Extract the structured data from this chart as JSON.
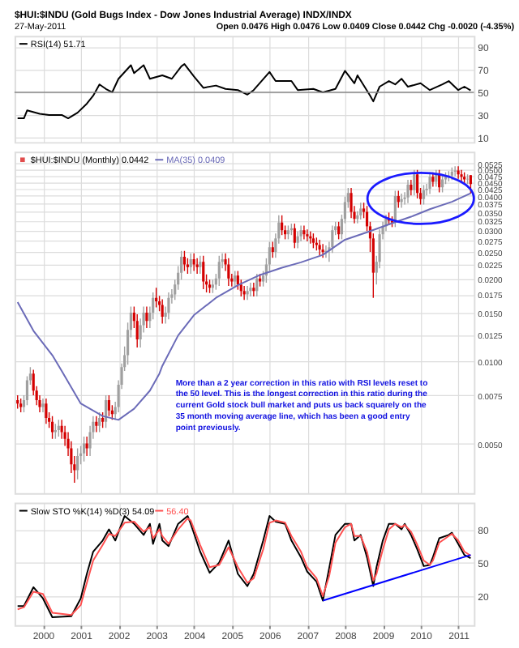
{
  "chart_data": [
    {
      "type": "line",
      "title": "$HUI:$INDU (Gold Bugs Index - Dow Jones Industrial Average) INDX/INDX",
      "subtitle": "27-May-2011",
      "annotations": [
        "Open 0.0476 High 0.0476 Low 0.0409 Close 0.0442 Chg -0.0020 (-4.35%)"
      ],
      "xlim": [
        "1999-04",
        "2011-06"
      ],
      "xticks": [
        "2000",
        "2001",
        "2002",
        "2003",
        "2004",
        "2005",
        "2006",
        "2007",
        "2008",
        "2009",
        "2010",
        "2011"
      ],
      "ylim": [
        6,
        100
      ],
      "yticks": [
        10,
        30,
        50,
        70,
        90
      ],
      "grid": true,
      "tick_labels": "y",
      "legend": "top left",
      "ref_lines": [
        {
          "axis": "y",
          "value": 50,
          "color": "#888888"
        }
      ],
      "series": [
        {
          "name": "RSI(14) 51.71",
          "color": "#000000",
          "x": [
            "1999-05",
            "1999-07",
            "1999-08",
            "1999-12",
            "2000-03",
            "2000-07",
            "2000-09",
            "2000-12",
            "2001-03",
            "2001-05",
            "2001-07",
            "2001-09",
            "2001-11",
            "2002-01",
            "2002-05",
            "2002-06",
            "2002-09",
            "2002-11",
            "2003-03",
            "2003-06",
            "2003-09",
            "2003-10",
            "2004-01",
            "2004-04",
            "2004-08",
            "2004-11",
            "2005-03",
            "2005-06",
            "2005-08",
            "2006-01",
            "2006-03",
            "2006-08",
            "2006-10",
            "2007-03",
            "2007-06",
            "2007-10",
            "2008-01",
            "2008-04",
            "2008-05",
            "2008-09",
            "2008-10",
            "2008-12",
            "2009-03",
            "2009-05",
            "2009-07",
            "2009-09",
            "2010-01",
            "2010-04",
            "2010-08",
            "2010-10",
            "2011-01",
            "2011-03",
            "2011-05"
          ],
          "values": [
            27,
            27,
            34,
            31,
            30,
            30,
            27,
            32,
            40,
            47,
            57,
            53,
            50,
            62,
            74,
            67,
            74,
            62,
            65,
            62,
            73,
            75,
            64,
            54,
            56,
            53,
            52,
            48,
            52,
            68,
            60,
            60,
            52,
            53,
            50,
            53,
            69,
            58,
            65,
            47,
            42,
            55,
            60,
            57,
            62,
            55,
            58,
            52,
            57,
            60,
            52,
            55,
            51.71
          ]
        }
      ]
    },
    {
      "type": "candlestick",
      "xlim": [
        "1999-04",
        "2011-06"
      ],
      "xticks": [
        "2000",
        "2001",
        "2002",
        "2003",
        "2004",
        "2005",
        "2006",
        "2007",
        "2008",
        "2009",
        "2010",
        "2011"
      ],
      "ylim": [
        0.0033,
        0.058
      ],
      "log": true,
      "grid": true,
      "tick_labels": "y",
      "legend": "top left",
      "yticks": [
        {
          "value": 0.005,
          "label": "0.0050"
        },
        {
          "value": 0.0075,
          "label": "0.0075"
        },
        {
          "value": 0.01,
          "label": "0.0100"
        },
        {
          "value": 0.0125,
          "label": "0.0125"
        },
        {
          "value": 0.015,
          "label": "0.0150"
        },
        {
          "value": 0.0175,
          "label": "0.0175"
        },
        {
          "value": 0.02,
          "label": "0.0200"
        },
        {
          "value": 0.0225,
          "label": "0.0225"
        },
        {
          "value": 0.025,
          "label": "0.0250"
        },
        {
          "value": 0.0275,
          "label": "0.0275"
        },
        {
          "value": 0.03,
          "label": "0.0300"
        },
        {
          "value": 0.0325,
          "label": "0.0325"
        },
        {
          "value": 0.035,
          "label": "0.0350"
        },
        {
          "value": 0.0375,
          "label": "0.0375"
        },
        {
          "value": 0.04,
          "label": "0.0400"
        },
        {
          "value": 0.0425,
          "label": "0.0425"
        },
        {
          "value": 0.045,
          "label": "0.0450"
        },
        {
          "value": 0.0475,
          "label": "0.0475"
        },
        {
          "value": 0.05,
          "label": "0.0500"
        },
        {
          "value": 0.0525,
          "label": "0.0525"
        }
      ],
      "annotations": [
        "More than a 2 year correction in this ratio with RSI levels reset to\nthe 50 level. This is the longest correction in this ratio during the\ncurrent Gold stock bull market and puts us back squarely on the\n35 month moving average line, which has been a good entry\npoint previously."
      ],
      "series": [
        {
          "type": "candlestick",
          "name": "$HUI:$INDU (Monthly) 0.0442",
          "color": "#000000",
          "x": [
            "1999-05",
            "1999-06",
            "1999-07",
            "1999-08",
            "1999-09",
            "1999-10",
            "1999-11",
            "1999-12",
            "2000-01",
            "2000-02",
            "2000-03",
            "2000-04",
            "2000-05",
            "2000-06",
            "2000-07",
            "2000-08",
            "2000-09",
            "2000-10",
            "2000-11",
            "2000-12",
            "2001-01",
            "2001-02",
            "2001-03",
            "2001-04",
            "2001-05",
            "2001-06",
            "2001-07",
            "2001-08",
            "2001-09",
            "2001-10",
            "2001-11",
            "2001-12",
            "2002-01",
            "2002-02",
            "2002-03",
            "2002-04",
            "2002-05",
            "2002-06",
            "2002-07",
            "2002-08",
            "2002-09",
            "2002-10",
            "2002-11",
            "2002-12",
            "2003-01",
            "2003-02",
            "2003-03",
            "2003-04",
            "2003-05",
            "2003-06",
            "2003-07",
            "2003-08",
            "2003-09",
            "2003-10",
            "2003-11",
            "2003-12",
            "2004-01",
            "2004-02",
            "2004-03",
            "2004-04",
            "2004-05",
            "2004-06",
            "2004-07",
            "2004-08",
            "2004-09",
            "2004-10",
            "2004-11",
            "2004-12",
            "2005-01",
            "2005-02",
            "2005-03",
            "2005-04",
            "2005-05",
            "2005-06",
            "2005-07",
            "2005-08",
            "2005-09",
            "2005-10",
            "2005-11",
            "2005-12",
            "2006-01",
            "2006-02",
            "2006-03",
            "2006-04",
            "2006-05",
            "2006-06",
            "2006-07",
            "2006-08",
            "2006-09",
            "2006-10",
            "2006-11",
            "2006-12",
            "2007-01",
            "2007-02",
            "2007-03",
            "2007-04",
            "2007-05",
            "2007-06",
            "2007-07",
            "2007-08",
            "2007-09",
            "2007-10",
            "2007-11",
            "2007-12",
            "2008-01",
            "2008-02",
            "2008-03",
            "2008-04",
            "2008-05",
            "2008-06",
            "2008-07",
            "2008-08",
            "2008-09",
            "2008-10",
            "2008-11",
            "2008-12",
            "2009-01",
            "2009-02",
            "2009-03",
            "2009-04",
            "2009-05",
            "2009-06",
            "2009-07",
            "2009-08",
            "2009-09",
            "2009-10",
            "2009-11",
            "2009-12",
            "2010-01",
            "2010-02",
            "2010-03",
            "2010-04",
            "2010-05",
            "2010-06",
            "2010-07",
            "2010-08",
            "2010-09",
            "2010-10",
            "2010-11",
            "2010-12",
            "2011-01",
            "2011-02",
            "2011-03",
            "2011-04",
            "2011-05"
          ],
          "ohlc": [
            [
              0.0072,
              0.0075,
              0.0067,
              0.007
            ],
            [
              0.007,
              0.0073,
              0.0065,
              0.0068
            ],
            [
              0.0068,
              0.0075,
              0.0065,
              0.0072
            ],
            [
              0.0072,
              0.0088,
              0.0069,
              0.0085
            ],
            [
              0.0085,
              0.0095,
              0.0082,
              0.009
            ],
            [
              0.009,
              0.0093,
              0.0075,
              0.0078
            ],
            [
              0.0078,
              0.0081,
              0.0069,
              0.0072
            ],
            [
              0.0072,
              0.0075,
              0.0065,
              0.0068
            ],
            [
              0.0068,
              0.0073,
              0.0065,
              0.007
            ],
            [
              0.007,
              0.0073,
              0.0059,
              0.0062
            ],
            [
              0.0062,
              0.0065,
              0.0057,
              0.006
            ],
            [
              0.006,
              0.0063,
              0.0052,
              0.0055
            ],
            [
              0.0055,
              0.0059,
              0.0052,
              0.0056
            ],
            [
              0.0056,
              0.0061,
              0.0053,
              0.0058
            ],
            [
              0.0058,
              0.0061,
              0.0052,
              0.0055
            ],
            [
              0.0055,
              0.0058,
              0.0049,
              0.0052
            ],
            [
              0.0052,
              0.0055,
              0.0045,
              0.0048
            ],
            [
              0.0048,
              0.0051,
              0.0039,
              0.0042
            ],
            [
              0.0042,
              0.0045,
              0.0036,
              0.004
            ],
            [
              0.004,
              0.0048,
              0.0037,
              0.0045
            ],
            [
              0.0045,
              0.0049,
              0.0042,
              0.0046
            ],
            [
              0.0046,
              0.0053,
              0.0043,
              0.005
            ],
            [
              0.005,
              0.0053,
              0.0045,
              0.0048
            ],
            [
              0.0048,
              0.0058,
              0.0045,
              0.0055
            ],
            [
              0.0055,
              0.0063,
              0.0052,
              0.006
            ],
            [
              0.006,
              0.0063,
              0.0055,
              0.0058
            ],
            [
              0.0058,
              0.0065,
              0.0055,
              0.0062
            ],
            [
              0.0062,
              0.0065,
              0.0057,
              0.006
            ],
            [
              0.006,
              0.0075,
              0.0057,
              0.0072
            ],
            [
              0.0072,
              0.0075,
              0.0063,
              0.0066
            ],
            [
              0.0066,
              0.0069,
              0.0061,
              0.0064
            ],
            [
              0.0064,
              0.0071,
              0.0061,
              0.0068
            ],
            [
              0.0068,
              0.0085,
              0.0065,
              0.0082
            ],
            [
              0.0082,
              0.0098,
              0.0079,
              0.0095
            ],
            [
              0.0095,
              0.0113,
              0.0092,
              0.0105
            ],
            [
              0.0105,
              0.0138,
              0.0097,
              0.013
            ],
            [
              0.013,
              0.0158,
              0.0122,
              0.015
            ],
            [
              0.015,
              0.0158,
              0.0132,
              0.014
            ],
            [
              0.014,
              0.0148,
              0.0112,
              0.012
            ],
            [
              0.012,
              0.0143,
              0.0112,
              0.0135
            ],
            [
              0.0135,
              0.0158,
              0.0127,
              0.015
            ],
            [
              0.015,
              0.0158,
              0.0132,
              0.014
            ],
            [
              0.014,
              0.0158,
              0.0132,
              0.015
            ],
            [
              0.015,
              0.0178,
              0.0142,
              0.017
            ],
            [
              0.017,
              0.0185,
              0.0157,
              0.0165
            ],
            [
              0.0165,
              0.0173,
              0.0152,
              0.016
            ],
            [
              0.016,
              0.0168,
              0.0137,
              0.0145
            ],
            [
              0.0145,
              0.0158,
              0.0137,
              0.015
            ],
            [
              0.015,
              0.0178,
              0.0142,
              0.017
            ],
            [
              0.017,
              0.0183,
              0.0162,
              0.0175
            ],
            [
              0.0175,
              0.0198,
              0.0167,
              0.019
            ],
            [
              0.019,
              0.0222,
              0.0182,
              0.021
            ],
            [
              0.021,
              0.0252,
              0.0198,
              0.024
            ],
            [
              0.024,
              0.0252,
              0.0213,
              0.0225
            ],
            [
              0.0225,
              0.0237,
              0.0208,
              0.022
            ],
            [
              0.022,
              0.0247,
              0.0208,
              0.0235
            ],
            [
              0.0235,
              0.0247,
              0.0213,
              0.0225
            ],
            [
              0.0225,
              0.0237,
              0.0208,
              0.022
            ],
            [
              0.022,
              0.0242,
              0.0208,
              0.023
            ],
            [
              0.023,
              0.0242,
              0.0183,
              0.0195
            ],
            [
              0.0195,
              0.0207,
              0.0178,
              0.019
            ],
            [
              0.019,
              0.0198,
              0.0177,
              0.0185
            ],
            [
              0.0185,
              0.0198,
              0.0177,
              0.019
            ],
            [
              0.019,
              0.0208,
              0.0182,
              0.02
            ],
            [
              0.02,
              0.0242,
              0.0188,
              0.023
            ],
            [
              0.023,
              0.0247,
              0.0218,
              0.0235
            ],
            [
              0.0235,
              0.0247,
              0.0213,
              0.0225
            ],
            [
              0.0225,
              0.0237,
              0.0188,
              0.02
            ],
            [
              0.02,
              0.0208,
              0.0187,
              0.0195
            ],
            [
              0.0195,
              0.0213,
              0.0187,
              0.0205
            ],
            [
              0.0205,
              0.0213,
              0.0182,
              0.019
            ],
            [
              0.019,
              0.0198,
              0.0172,
              0.018
            ],
            [
              0.018,
              0.0188,
              0.0167,
              0.0175
            ],
            [
              0.0175,
              0.0188,
              0.0167,
              0.018
            ],
            [
              0.018,
              0.0193,
              0.0172,
              0.0185
            ],
            [
              0.0185,
              0.0193,
              0.0172,
              0.018
            ],
            [
              0.018,
              0.0208,
              0.0172,
              0.02
            ],
            [
              0.02,
              0.0208,
              0.0187,
              0.0195
            ],
            [
              0.0195,
              0.0213,
              0.0187,
              0.0205
            ],
            [
              0.0205,
              0.0237,
              0.0193,
              0.0225
            ],
            [
              0.0225,
              0.0272,
              0.0213,
              0.026
            ],
            [
              0.026,
              0.0272,
              0.0238,
              0.025
            ],
            [
              0.025,
              0.0292,
              0.0238,
              0.028
            ],
            [
              0.028,
              0.034,
              0.0268,
              0.032
            ],
            [
              0.032,
              0.034,
              0.0288,
              0.03
            ],
            [
              0.03,
              0.0312,
              0.0278,
              0.029
            ],
            [
              0.029,
              0.0312,
              0.0278,
              0.03
            ],
            [
              0.03,
              0.0317,
              0.0288,
              0.0305
            ],
            [
              0.0305,
              0.0317,
              0.0258,
              0.027
            ],
            [
              0.027,
              0.0297,
              0.0258,
              0.0285
            ],
            [
              0.0285,
              0.0312,
              0.0273,
              0.03
            ],
            [
              0.03,
              0.0312,
              0.0278,
              0.029
            ],
            [
              0.029,
              0.0302,
              0.0273,
              0.0285
            ],
            [
              0.0285,
              0.0297,
              0.0268,
              0.028
            ],
            [
              0.028,
              0.0292,
              0.0258,
              0.027
            ],
            [
              0.027,
              0.0282,
              0.0253,
              0.0265
            ],
            [
              0.0265,
              0.0277,
              0.0243,
              0.0255
            ],
            [
              0.0255,
              0.0267,
              0.0238,
              0.025
            ],
            [
              0.025,
              0.0264,
              0.0238,
              0.0252
            ],
            [
              0.0252,
              0.0272,
              0.023,
              0.026
            ],
            [
              0.026,
              0.0312,
              0.0248,
              0.03
            ],
            [
              0.03,
              0.0322,
              0.0288,
              0.031
            ],
            [
              0.031,
              0.0322,
              0.0278,
              0.029
            ],
            [
              0.029,
              0.0342,
              0.0278,
              0.033
            ],
            [
              0.033,
              0.0398,
              0.0318,
              0.038
            ],
            [
              0.038,
              0.0428,
              0.0362,
              0.041
            ],
            [
              0.041,
              0.0428,
              0.0332,
              0.035
            ],
            [
              0.035,
              0.0368,
              0.0318,
              0.033
            ],
            [
              0.033,
              0.0352,
              0.0318,
              0.034
            ],
            [
              0.034,
              0.0378,
              0.0328,
              0.036
            ],
            [
              0.036,
              0.0378,
              0.0332,
              0.035
            ],
            [
              0.035,
              0.0368,
              0.0298,
              0.031
            ],
            [
              0.031,
              0.0322,
              0.025,
              0.028
            ],
            [
              0.028,
              0.0292,
              0.017,
              0.021
            ],
            [
              0.021,
              0.0242,
              0.019,
              0.023
            ],
            [
              0.023,
              0.0302,
              0.0218,
              0.029
            ],
            [
              0.029,
              0.0322,
              0.0278,
              0.031
            ],
            [
              0.031,
              0.0342,
              0.0298,
              0.033
            ],
            [
              0.033,
              0.0348,
              0.0313,
              0.0325
            ],
            [
              0.0325,
              0.0337,
              0.0308,
              0.032
            ],
            [
              0.032,
              0.0418,
              0.0308,
              0.04
            ],
            [
              0.04,
              0.0418,
              0.0362,
              0.038
            ],
            [
              0.038,
              0.0408,
              0.0362,
              0.039
            ],
            [
              0.039,
              0.0413,
              0.0372,
              0.0395
            ],
            [
              0.0395,
              0.0458,
              0.0377,
              0.044
            ],
            [
              0.044,
              0.0458,
              0.0402,
              0.042
            ],
            [
              0.042,
              0.0498,
              0.0402,
              0.048
            ],
            [
              0.048,
              0.0498,
              0.0392,
              0.041
            ],
            [
              0.041,
              0.0428,
              0.0372,
              0.039
            ],
            [
              0.039,
              0.0438,
              0.0372,
              0.042
            ],
            [
              0.042,
              0.0443,
              0.0402,
              0.0425
            ],
            [
              0.0425,
              0.0488,
              0.0407,
              0.047
            ],
            [
              0.047,
              0.0488,
              0.0432,
              0.045
            ],
            [
              0.045,
              0.0498,
              0.0432,
              0.048
            ],
            [
              0.048,
              0.0498,
              0.0412,
              0.043
            ],
            [
              0.043,
              0.0478,
              0.0412,
              0.046
            ],
            [
              0.046,
              0.0488,
              0.0442,
              0.047
            ],
            [
              0.047,
              0.0493,
              0.0452,
              0.0475
            ],
            [
              0.0475,
              0.0508,
              0.0457,
              0.049
            ],
            [
              0.049,
              0.0513,
              0.0472,
              0.0495
            ],
            [
              0.0495,
              0.0513,
              0.0462,
              0.048
            ],
            [
              0.048,
              0.0498,
              0.0452,
              0.047
            ],
            [
              0.047,
              0.0488,
              0.0442,
              0.046
            ],
            [
              0.046,
              0.048,
              0.0442,
              0.0462
            ],
            [
              0.0476,
              0.0476,
              0.0409,
              0.0442
            ]
          ],
          "colors": [
            "#d40000",
            "#d40000",
            "#a0a0a0",
            "#a0a0a0",
            "#a0a0a0",
            "#d40000",
            "#d40000",
            "#d40000",
            "#a0a0a0",
            "#d40000",
            "#d40000",
            "#d40000",
            "#a0a0a0",
            "#a0a0a0",
            "#d40000",
            "#d40000",
            "#d40000",
            "#d40000",
            "#d40000",
            "#a0a0a0",
            "#a0a0a0",
            "#a0a0a0",
            "#d40000",
            "#a0a0a0",
            "#a0a0a0",
            "#d40000",
            "#a0a0a0",
            "#d40000",
            "#a0a0a0",
            "#d40000",
            "#d40000",
            "#a0a0a0",
            "#a0a0a0",
            "#a0a0a0",
            "#a0a0a0",
            "#a0a0a0",
            "#a0a0a0",
            "#d40000",
            "#d40000",
            "#a0a0a0",
            "#a0a0a0",
            "#d40000",
            "#a0a0a0",
            "#a0a0a0",
            "#d40000",
            "#d40000",
            "#d40000",
            "#a0a0a0",
            "#a0a0a0",
            "#a0a0a0",
            "#a0a0a0",
            "#a0a0a0",
            "#a0a0a0",
            "#d40000",
            "#d40000",
            "#a0a0a0",
            "#d40000",
            "#d40000",
            "#a0a0a0",
            "#d40000",
            "#d40000",
            "#d40000",
            "#a0a0a0",
            "#a0a0a0",
            "#a0a0a0",
            "#a0a0a0",
            "#d40000",
            "#d40000",
            "#d40000",
            "#a0a0a0",
            "#d40000",
            "#d40000",
            "#d40000",
            "#a0a0a0",
            "#a0a0a0",
            "#d40000",
            "#a0a0a0",
            "#d40000",
            "#a0a0a0",
            "#a0a0a0",
            "#a0a0a0",
            "#d40000",
            "#a0a0a0",
            "#a0a0a0",
            "#d40000",
            "#d40000",
            "#a0a0a0",
            "#a0a0a0",
            "#d40000",
            "#a0a0a0",
            "#a0a0a0",
            "#d40000",
            "#d40000",
            "#d40000",
            "#d40000",
            "#d40000",
            "#d40000",
            "#d40000",
            "#a0a0a0",
            "#a0a0a0",
            "#a0a0a0",
            "#a0a0a0",
            "#d40000",
            "#a0a0a0",
            "#a0a0a0",
            "#a0a0a0",
            "#d40000",
            "#d40000",
            "#a0a0a0",
            "#a0a0a0",
            "#d40000",
            "#d40000",
            "#d40000",
            "#d40000",
            "#a0a0a0",
            "#a0a0a0",
            "#a0a0a0",
            "#a0a0a0",
            "#d40000",
            "#d40000",
            "#a0a0a0",
            "#d40000",
            "#a0a0a0",
            "#a0a0a0",
            "#a0a0a0",
            "#d40000",
            "#a0a0a0",
            "#d40000",
            "#d40000",
            "#a0a0a0",
            "#a0a0a0",
            "#a0a0a0",
            "#d40000",
            "#a0a0a0",
            "#d40000",
            "#a0a0a0",
            "#a0a0a0",
            "#a0a0a0",
            "#a0a0a0",
            "#a0a0a0",
            "#d40000",
            "#d40000",
            "#d40000",
            "#a0a0a0",
            "#d40000"
          ]
        },
        {
          "type": "line",
          "name": "MA(35) 0.0409",
          "color": "#6b6bb8",
          "x": [
            "1999-05",
            "1999-10",
            "2000-04",
            "2000-07",
            "2001-01",
            "2001-08",
            "2002-01",
            "2002-06",
            "2002-11",
            "2003-02",
            "2003-03",
            "2003-08",
            "2004-01",
            "2004-08",
            "2005-03",
            "2005-10",
            "2006-05",
            "2006-11",
            "2007-06",
            "2008-01",
            "2008-08",
            "2009-03",
            "2009-10",
            "2010-04",
            "2010-11",
            "2011-05"
          ],
          "values": [
            0.0164,
            0.0129,
            0.0105,
            0.0092,
            0.007,
            0.0063,
            0.0061,
            0.0067,
            0.0078,
            0.009,
            0.0096,
            0.0124,
            0.0147,
            0.017,
            0.0189,
            0.0206,
            0.0219,
            0.0229,
            0.0244,
            0.0277,
            0.0295,
            0.0315,
            0.0336,
            0.0358,
            0.0381,
            0.0409
          ]
        }
      ]
    },
    {
      "type": "line",
      "xlim": [
        "1999-04",
        "2011-06"
      ],
      "xticks": [
        "2000",
        "2001",
        "2002",
        "2003",
        "2004",
        "2005",
        "2006",
        "2007",
        "2008",
        "2009",
        "2010",
        "2011"
      ],
      "ylim": [
        -6,
        104
      ],
      "yticks": [
        20,
        50,
        80
      ],
      "grid": true,
      "legend": "top left",
      "series": [
        {
          "name": "Slow STO %K(14) %D(3) 54.09",
          "color": "#000000",
          "x": [
            "1999-05",
            "1999-07",
            "1999-10",
            "2000-01",
            "2000-04",
            "2000-10",
            "2001-01",
            "2001-03",
            "2001-05",
            "2001-08",
            "2001-10",
            "2001-12",
            "2002-03",
            "2002-06",
            "2002-09",
            "2002-11",
            "2002-12",
            "2003-02",
            "2003-03",
            "2003-05",
            "2003-08",
            "2003-11",
            "2003-12",
            "2004-03",
            "2004-06",
            "2004-09",
            "2004-12",
            "2005-03",
            "2005-06",
            "2005-08",
            "2005-11",
            "2006-01",
            "2006-03",
            "2006-06",
            "2006-08",
            "2006-11",
            "2007-01",
            "2007-04",
            "2007-06",
            "2007-08",
            "2007-10",
            "2008-01",
            "2008-03",
            "2008-04",
            "2008-06",
            "2008-08",
            "2008-10",
            "2008-11",
            "2009-01",
            "2009-03",
            "2009-05",
            "2009-07",
            "2009-08",
            "2009-10",
            "2009-12",
            "2010-02",
            "2010-04",
            "2010-05",
            "2010-07",
            "2010-10",
            "2010-11",
            "2011-01",
            "2011-03",
            "2011-05"
          ],
          "values": [
            11,
            11,
            28,
            18,
            1,
            2,
            18,
            40,
            60,
            70,
            80,
            70,
            92,
            85,
            75,
            85,
            67,
            85,
            70,
            65,
            85,
            92,
            85,
            60,
            41,
            50,
            70,
            40,
            29,
            40,
            70,
            92,
            87,
            85,
            70,
            55,
            42,
            33,
            16,
            45,
            75,
            85,
            85,
            70,
            75,
            55,
            29,
            46,
            70,
            85,
            85,
            80,
            85,
            75,
            62,
            47,
            48,
            55,
            72,
            75,
            77,
            67,
            57,
            54.09
          ]
        },
        {
          "name": "56.40",
          "color": "#ff5050",
          "x": [
            "1999-05",
            "1999-07",
            "1999-10",
            "2000-01",
            "2000-04",
            "2000-10",
            "2001-01",
            "2001-03",
            "2001-05",
            "2001-08",
            "2001-10",
            "2001-12",
            "2002-03",
            "2002-06",
            "2002-09",
            "2002-11",
            "2002-12",
            "2003-02",
            "2003-03",
            "2003-05",
            "2003-08",
            "2003-11",
            "2003-12",
            "2004-03",
            "2004-06",
            "2004-09",
            "2004-12",
            "2005-03",
            "2005-06",
            "2005-08",
            "2005-11",
            "2006-01",
            "2006-03",
            "2006-06",
            "2006-08",
            "2006-11",
            "2007-01",
            "2007-04",
            "2007-06",
            "2007-08",
            "2007-10",
            "2008-01",
            "2008-03",
            "2008-04",
            "2008-06",
            "2008-08",
            "2008-10",
            "2008-11",
            "2009-01",
            "2009-03",
            "2009-05",
            "2009-07",
            "2009-08",
            "2009-10",
            "2009-12",
            "2010-02",
            "2010-04",
            "2010-05",
            "2010-07",
            "2010-10",
            "2010-11",
            "2011-01",
            "2011-03",
            "2011-05"
          ],
          "values": [
            8,
            10,
            24,
            22,
            5,
            3,
            12,
            32,
            52,
            66,
            76,
            74,
            86,
            87,
            78,
            82,
            72,
            80,
            74,
            67,
            80,
            90,
            88,
            66,
            46,
            48,
            64,
            46,
            32,
            36,
            62,
            86,
            88,
            86,
            74,
            60,
            46,
            36,
            20,
            38,
            68,
            82,
            85,
            74,
            74,
            60,
            34,
            40,
            62,
            80,
            85,
            82,
            84,
            78,
            66,
            52,
            48,
            52,
            68,
            74,
            76,
            70,
            60,
            56.4
          ]
        },
        {
          "color": "#0000ff",
          "x": [
            "2007-06",
            "2011-05"
          ],
          "values": [
            16,
            57
          ]
        }
      ]
    }
  ]
}
